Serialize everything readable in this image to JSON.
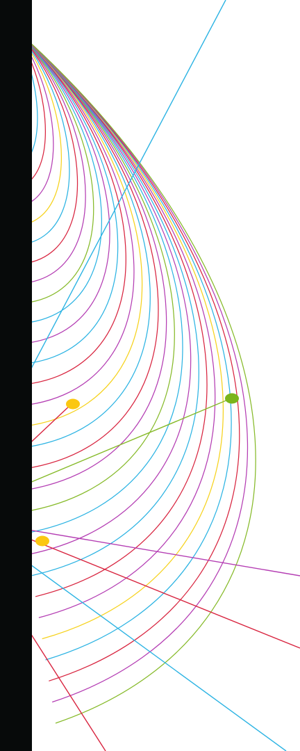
{
  "artwork": {
    "background_color": "#ffffff",
    "band_color": "#070a0a",
    "palette": {
      "cyan": "#2bb3e3",
      "magenta": "#b43db3",
      "red": "#d8243f",
      "yellow": "#f6d21c",
      "green": "#86ba29",
      "dot_yellow": "#fbc711",
      "dot_green": "#7ab51d"
    },
    "curve_color_cycle": [
      "cyan",
      "magenta",
      "cyan",
      "red",
      "magenta",
      "yellow",
      "cyan",
      "red",
      "magenta",
      "green"
    ],
    "curve_count": 30,
    "rays": [
      {
        "color": "cyan",
        "name": "cyan-ray-upper"
      },
      {
        "color": "green",
        "name": "green-ray"
      },
      {
        "color": "red",
        "name": "red-ray-short"
      },
      {
        "color": "magenta",
        "name": "magenta-ray"
      },
      {
        "color": "red",
        "name": "red-ray-long"
      },
      {
        "color": "cyan",
        "name": "cyan-ray-lower"
      },
      {
        "color": "red",
        "name": "red-ray-bottom"
      }
    ],
    "dots": [
      {
        "color": "dot_yellow",
        "name": "yellow-dot-upper"
      },
      {
        "color": "dot_green",
        "name": "green-dot"
      },
      {
        "color": "dot_yellow",
        "name": "yellow-dot-lower"
      }
    ]
  }
}
